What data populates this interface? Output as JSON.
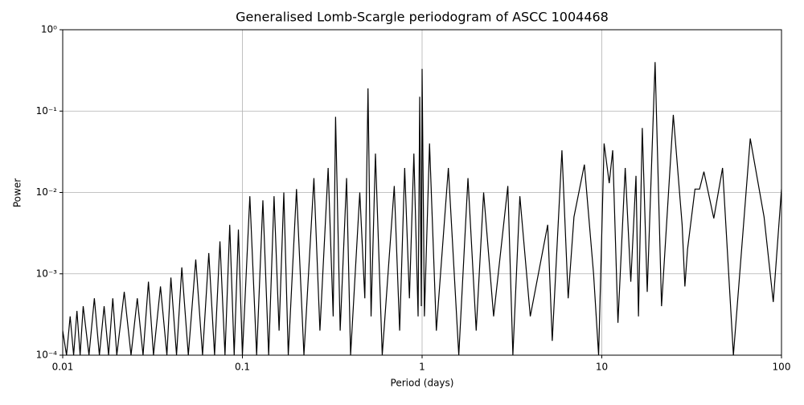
{
  "chart_data": {
    "type": "line",
    "title": "Generalised Lomb-Scargle periodogram of ASCC 1004468",
    "xlabel": "Period (days)",
    "ylabel": "Power",
    "xscale": "log",
    "yscale": "log",
    "grid": true,
    "xlim": [
      0.01,
      100
    ],
    "ylim": [
      0.0001,
      1
    ],
    "xticks": [
      0.01,
      0.1,
      1,
      10,
      100
    ],
    "yticks": [
      {
        "value": 0.0001,
        "label": "10⁻⁴"
      },
      {
        "value": 0.001,
        "label": "10⁻³"
      },
      {
        "value": 0.01,
        "label": "10⁻²"
      },
      {
        "value": 0.1,
        "label": "10⁻¹"
      },
      {
        "value": 1,
        "label": "10⁰"
      }
    ],
    "x": [
      0.01,
      0.0105,
      0.011,
      0.0115,
      0.012,
      0.0125,
      0.013,
      0.014,
      0.015,
      0.016,
      0.017,
      0.018,
      0.019,
      0.02,
      0.022,
      0.024,
      0.026,
      0.028,
      0.03,
      0.032,
      0.035,
      0.038,
      0.04,
      0.043,
      0.046,
      0.05,
      0.055,
      0.06,
      0.065,
      0.07,
      0.075,
      0.08,
      0.085,
      0.09,
      0.095,
      0.1,
      0.11,
      0.12,
      0.13,
      0.14,
      0.15,
      0.16,
      0.17,
      0.18,
      0.2,
      0.22,
      0.25,
      0.27,
      0.3,
      0.32,
      0.33,
      0.35,
      0.38,
      0.4,
      0.45,
      0.48,
      0.5,
      0.52,
      0.55,
      0.6,
      0.7,
      0.75,
      0.8,
      0.85,
      0.9,
      0.95,
      0.97,
      0.99,
      1.0,
      1.03,
      1.1,
      1.2,
      1.4,
      1.6,
      1.8,
      2.0,
      2.2,
      2.5,
      3.0,
      3.2,
      3.5,
      4.0,
      5.0,
      5.3,
      6.0,
      6.5,
      7.0,
      8.0,
      9.0,
      9.6,
      10.3,
      11.0,
      11.5,
      12.3,
      13.5,
      14.5,
      15.5,
      16.0,
      16.8,
      17.9,
      19.8,
      21.5,
      25.0,
      28.0,
      29.0,
      30.0,
      33.0,
      35.0,
      37.0,
      42.0,
      47.0,
      54.0,
      67.0,
      80.0,
      90.0,
      100.0
    ],
    "series": [
      {
        "color": "#000000",
        "values": [
          0.0002,
          0.0001,
          0.0003,
          0.0001,
          0.00035,
          0.0001,
          0.0004,
          0.0001,
          0.0005,
          0.0001,
          0.0004,
          0.0001,
          0.0005,
          0.0001,
          0.0006,
          0.0001,
          0.0005,
          0.0001,
          0.0008,
          0.0001,
          0.0007,
          0.0001,
          0.0009,
          0.0001,
          0.0012,
          0.0001,
          0.0015,
          0.0001,
          0.0018,
          0.0001,
          0.0025,
          0.0001,
          0.004,
          0.0001,
          0.0035,
          0.0001,
          0.009,
          0.0001,
          0.008,
          0.0001,
          0.009,
          0.0002,
          0.01,
          0.0001,
          0.011,
          0.0001,
          0.015,
          0.0002,
          0.02,
          0.0003,
          0.085,
          0.0002,
          0.015,
          0.0001,
          0.01,
          0.0005,
          0.19,
          0.0003,
          0.03,
          0.0001,
          0.012,
          0.0002,
          0.02,
          0.0005,
          0.03,
          0.0003,
          0.15,
          0.0004,
          0.33,
          0.0003,
          0.04,
          0.0002,
          0.02,
          0.0001,
          0.015,
          0.0002,
          0.01,
          0.0003,
          0.012,
          0.0001,
          0.009,
          0.0003,
          0.004,
          0.00015,
          0.033,
          0.0005,
          0.005,
          0.022,
          0.001,
          0.0001,
          0.04,
          0.013,
          0.033,
          0.00025,
          0.02,
          0.0008,
          0.016,
          0.0003,
          0.062,
          0.0006,
          0.4,
          0.0004,
          0.09,
          0.004,
          0.0007,
          0.002,
          0.011,
          0.011,
          0.018,
          0.0048,
          0.02,
          0.0001,
          0.046,
          0.005,
          0.00045,
          0.011
        ]
      }
    ]
  }
}
